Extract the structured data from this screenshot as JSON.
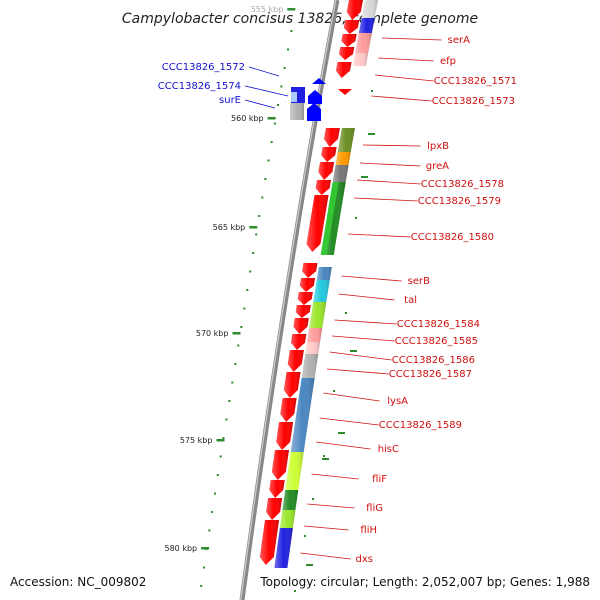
{
  "title": "Campylobacter concisus 13826, complete genome",
  "footer": {
    "accession": "Accession: NC_009802",
    "topology": "Topology: circular; Length: 2,052,007 bp; Genes: 1,988"
  },
  "scale_unit": "kbp",
  "ticks": [
    {
      "label": "555 kbp",
      "kbp": 555
    },
    {
      "label": "560 kbp",
      "kbp": 560
    },
    {
      "label": "565 kbp",
      "kbp": 565
    },
    {
      "label": "570 kbp",
      "kbp": 570
    },
    {
      "label": "575 kbp",
      "kbp": 575
    },
    {
      "label": "580 kbp",
      "kbp": 580
    }
  ],
  "forward_genes": [
    {
      "name": "serA",
      "color": "#ff0000"
    },
    {
      "name": "efp",
      "color": "#ff0000"
    },
    {
      "name": "CCC13826_1571",
      "color": "#ff0000"
    },
    {
      "name": "CCC13826_1573",
      "color": "#ff0000"
    },
    {
      "name": "lpxB",
      "color": "#ff0000"
    },
    {
      "name": "greA",
      "color": "#ff0000"
    },
    {
      "name": "CCC13826_1578",
      "color": "#ff0000"
    },
    {
      "name": "CCC13826_1579",
      "color": "#ff0000"
    },
    {
      "name": "CCC13826_1580",
      "color": "#ff0000"
    },
    {
      "name": "serB",
      "color": "#ff0000"
    },
    {
      "name": "tal",
      "color": "#ff0000"
    },
    {
      "name": "CCC13826_1584",
      "color": "#ff0000"
    },
    {
      "name": "CCC13826_1585",
      "color": "#ff0000"
    },
    {
      "name": "CCC13826_1586",
      "color": "#ff0000"
    },
    {
      "name": "CCC13826_1587",
      "color": "#ff0000"
    },
    {
      "name": "lysA",
      "color": "#ff0000"
    },
    {
      "name": "CCC13826_1589",
      "color": "#ff0000"
    },
    {
      "name": "hisC",
      "color": "#ff0000"
    },
    {
      "name": "fliF",
      "color": "#ff0000"
    },
    {
      "name": "fliG",
      "color": "#ff0000"
    },
    {
      "name": "fliH",
      "color": "#ff0000"
    },
    {
      "name": "dxs",
      "color": "#ff0000"
    }
  ],
  "reverse_genes": [
    {
      "name": "CCC13826_1572",
      "color": "#0000ff"
    },
    {
      "name": "CCC13826_1574",
      "color": "#0000ff"
    },
    {
      "name": "surE",
      "color": "#0000ff"
    }
  ],
  "cog_colors": {
    "light_red": "#ff9a9a",
    "pink": "#ffc8c8",
    "blue": "#2020e0",
    "light_grey": "#d8d8d8",
    "olive": "#6b8e23",
    "orange": "#ff9900",
    "dark_grey": "#777777",
    "green": "#33cc33",
    "dark_green": "#228b22",
    "steel_blue": "#4a86c0",
    "cyan": "#22c8dd",
    "yellow_green": "#99e62a",
    "grey": "#b0b0b0",
    "lime": "#ccff33",
    "backbone": "#888888",
    "tick_green": "#2e8b2e"
  }
}
